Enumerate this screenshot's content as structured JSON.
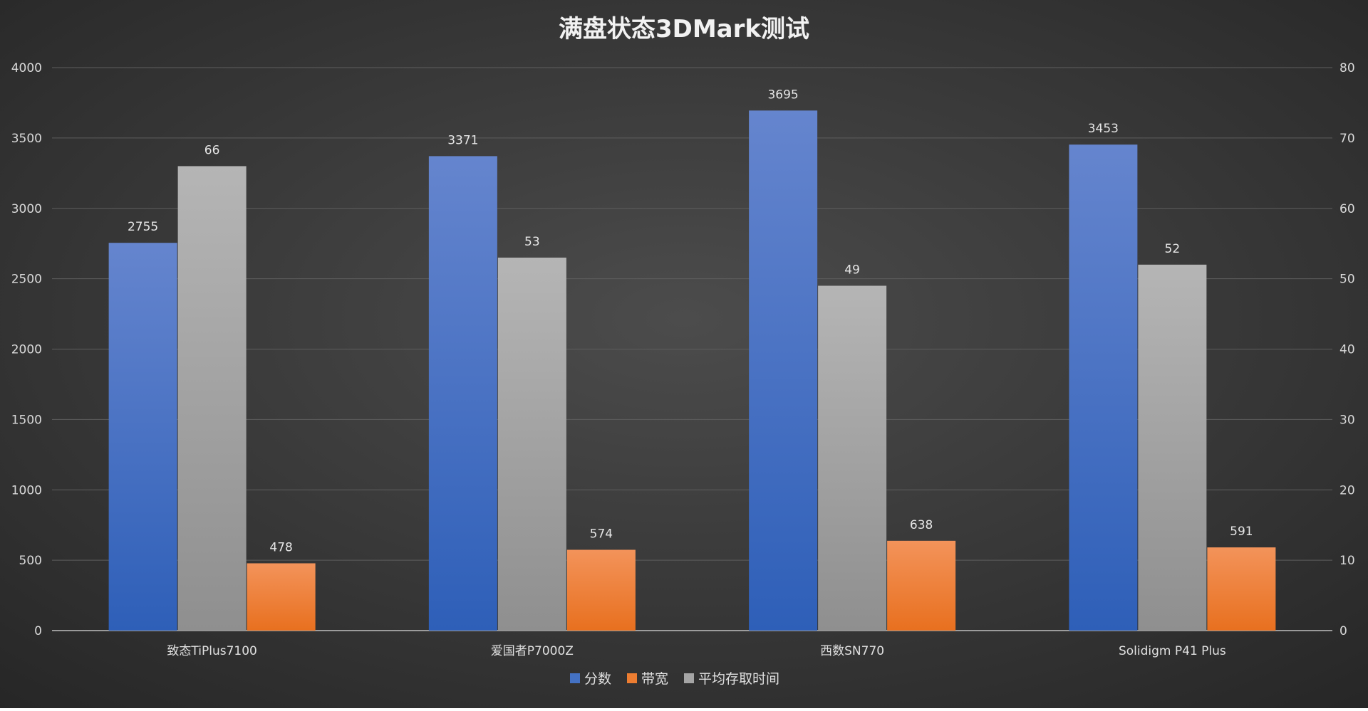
{
  "chart_data": {
    "type": "bar",
    "title": "满盘状态3DMark测试",
    "categories": [
      "致态TiPlus7100",
      "爱国者P7000Z",
      "西数SN770",
      "Solidigm P41 Plus"
    ],
    "series": [
      {
        "name": "分数",
        "axis": "left",
        "values": [
          2755,
          3371,
          3695,
          3453
        ],
        "color": "#4472C4"
      },
      {
        "name": "平均存取时间",
        "axis": "right",
        "values": [
          66,
          53,
          49,
          52
        ],
        "color": "#A5A5A5"
      },
      {
        "name": "带宽",
        "axis": "left",
        "values": [
          478,
          574,
          638,
          591
        ],
        "color": "#ED7D31"
      }
    ],
    "legend_order": [
      "分数",
      "带宽",
      "平均存取时间"
    ],
    "legend_position": "bottom",
    "y_left": {
      "ylim": [
        0,
        4000
      ],
      "ticks": [
        0,
        500,
        1000,
        1500,
        2000,
        2500,
        3000,
        3500,
        4000
      ]
    },
    "y_right": {
      "ylim": [
        0,
        80
      ],
      "ticks": [
        0,
        10,
        20,
        30,
        40,
        50,
        60,
        70,
        80
      ]
    },
    "grid": true,
    "background": "#333333"
  }
}
